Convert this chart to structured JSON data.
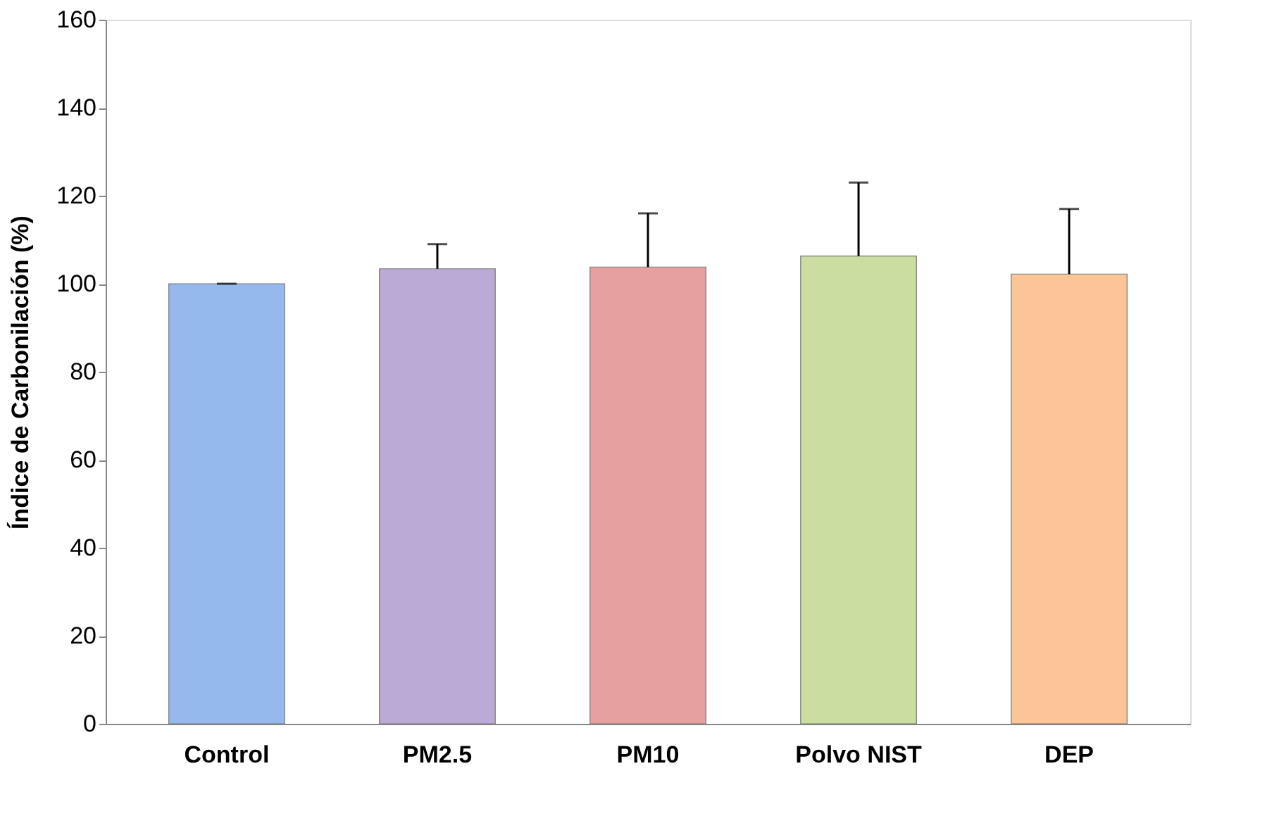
{
  "chart_data": {
    "type": "bar",
    "ylabel": "Índice de Carbonilación (%)",
    "categories": [
      "Control",
      "PM2.5",
      "PM10",
      "Polvo NIST",
      "DEP"
    ],
    "values": [
      100,
      103.4,
      103.8,
      106.3,
      102.2
    ],
    "colors": [
      "#95b9ec",
      "#bcaad6",
      "#e6a0a0",
      "#c9dea0",
      "#fbc598"
    ],
    "errors": [
      [
        100,
        100
      ],
      [
        103.4,
        109
      ],
      [
        103.8,
        116
      ],
      [
        106.3,
        123
      ],
      [
        102.2,
        117
      ]
    ],
    "ylim": [
      0,
      160
    ],
    "yticks": [
      0,
      20,
      40,
      60,
      80,
      100,
      120,
      140,
      160
    ],
    "grid": false
  }
}
